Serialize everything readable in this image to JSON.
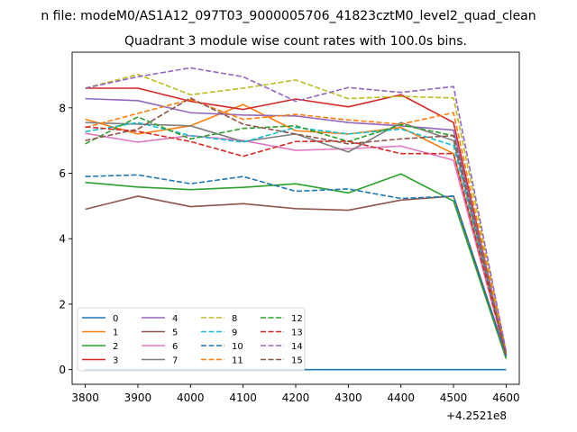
{
  "chart_data": {
    "type": "line",
    "suptitle": "n file: modeM0/AS1A12_097T03_9000005706_41823cztM0_level2_quad_clean",
    "title": "Quadrant 3 module wise count rates with 100.0s bins.",
    "xlabel": "",
    "ylabel": "",
    "x": [
      3800,
      3900,
      4000,
      4100,
      4200,
      4300,
      4400,
      4500,
      4600
    ],
    "x_offset_label": "+4.2521e8",
    "xlim": [
      3775,
      4625
    ],
    "ylim": [
      -0.45,
      9.7
    ],
    "x_ticks": [
      "3800",
      "3900",
      "4000",
      "4100",
      "4200",
      "4300",
      "4400",
      "4500",
      "4600"
    ],
    "y_ticks": [
      "0",
      "2",
      "4",
      "6",
      "8"
    ],
    "legend": {
      "placement": "lower-left",
      "columns": 4
    },
    "series": [
      {
        "name": "0",
        "color": "#1f77b4",
        "dash": "solid",
        "values": [
          0,
          0,
          0,
          0,
          0,
          0,
          0,
          0,
          0
        ]
      },
      {
        "name": "1",
        "color": "#ff7f0e",
        "dash": "solid",
        "values": [
          7.65,
          7.2,
          7.45,
          8.1,
          7.3,
          7.2,
          7.4,
          6.6,
          0.45
        ]
      },
      {
        "name": "2",
        "color": "#2ca02c",
        "dash": "solid",
        "values": [
          5.72,
          5.58,
          5.5,
          5.57,
          5.68,
          5.4,
          5.98,
          5.15,
          0.33
        ]
      },
      {
        "name": "3",
        "color": "#d62728",
        "dash": "solid",
        "values": [
          8.6,
          8.6,
          8.2,
          7.95,
          8.27,
          8.03,
          8.4,
          7.55,
          0.45
        ]
      },
      {
        "name": "4",
        "color": "#9467bd",
        "dash": "solid",
        "values": [
          8.28,
          8.22,
          7.85,
          7.78,
          7.75,
          7.55,
          7.45,
          7.32,
          0.5
        ]
      },
      {
        "name": "5",
        "color": "#8c564b",
        "dash": "solid",
        "values": [
          4.9,
          5.3,
          4.98,
          5.07,
          4.92,
          4.87,
          5.18,
          5.3,
          0.43
        ]
      },
      {
        "name": "6",
        "color": "#e377c2",
        "dash": "solid",
        "values": [
          7.22,
          6.95,
          7.15,
          7.0,
          6.7,
          6.75,
          6.83,
          6.4,
          0.42
        ]
      },
      {
        "name": "7",
        "color": "#7f7f7f",
        "dash": "solid",
        "values": [
          7.55,
          7.5,
          7.45,
          6.97,
          7.2,
          6.65,
          7.55,
          7.0,
          0.47
        ]
      },
      {
        "name": "8",
        "color": "#bcbd22",
        "dash": "dashed",
        "values": [
          8.6,
          9.02,
          8.4,
          8.6,
          8.85,
          8.28,
          8.35,
          8.3,
          0.55
        ]
      },
      {
        "name": "9",
        "color": "#17becf",
        "dash": "dashed",
        "values": [
          7.27,
          7.55,
          7.15,
          6.95,
          7.4,
          7.2,
          7.35,
          6.85,
          0.47
        ]
      },
      {
        "name": "10",
        "color": "#1f77b4",
        "dash": "dashed",
        "values": [
          5.9,
          5.95,
          5.68,
          5.9,
          5.45,
          5.52,
          5.23,
          5.3,
          0.4
        ]
      },
      {
        "name": "11",
        "color": "#ff7f0e",
        "dash": "dashed",
        "values": [
          7.4,
          7.83,
          8.25,
          7.65,
          7.8,
          7.63,
          7.5,
          7.85,
          0.5
        ]
      },
      {
        "name": "12",
        "color": "#2ca02c",
        "dash": "dashed",
        "values": [
          6.9,
          7.72,
          7.05,
          7.37,
          7.45,
          6.97,
          7.48,
          7.15,
          0.4
        ]
      },
      {
        "name": "13",
        "color": "#d62728",
        "dash": "dashed",
        "values": [
          7.42,
          7.28,
          6.97,
          6.52,
          6.97,
          6.98,
          6.6,
          6.6,
          0.45
        ]
      },
      {
        "name": "14",
        "color": "#9467bd",
        "dash": "dashed",
        "values": [
          8.6,
          8.95,
          9.22,
          8.95,
          8.2,
          8.62,
          8.47,
          8.65,
          0.55
        ]
      },
      {
        "name": "15",
        "color": "#8c564b",
        "dash": "dashed",
        "values": [
          7.0,
          7.35,
          8.3,
          7.5,
          7.2,
          6.9,
          7.05,
          7.15,
          0.42
        ]
      }
    ]
  }
}
